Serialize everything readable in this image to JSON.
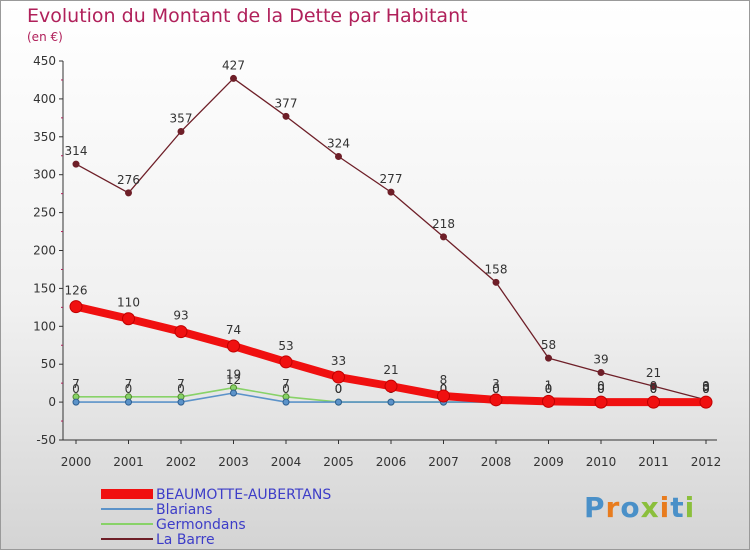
{
  "chart_data": {
    "type": "line",
    "title": "Evolution du Montant de la Dette par Habitant",
    "unit_label": "(en €)",
    "xlabel": "",
    "ylabel": "",
    "ylim": [
      -50,
      450
    ],
    "yticks": [
      -50,
      0,
      50,
      100,
      150,
      200,
      250,
      300,
      350,
      400,
      450
    ],
    "x": [
      "2000",
      "2001",
      "2002",
      "2003",
      "2004",
      "2005",
      "2006",
      "2007",
      "2008",
      "2009",
      "2010",
      "2011",
      "2012"
    ],
    "series": [
      {
        "name": "La Barre",
        "color": "#6e1f28",
        "values": [
          314,
          276,
          357,
          427,
          377,
          324,
          277,
          218,
          158,
          58,
          39,
          21,
          3
        ],
        "labels": [
          "314",
          "276",
          "357",
          "427",
          "377",
          "324",
          "277",
          "218",
          "158",
          "58",
          "39",
          "21",
          "3"
        ]
      },
      {
        "name": "Germondans",
        "color": "#88d268",
        "values": [
          7,
          7,
          7,
          19,
          7,
          0,
          0,
          0,
          0,
          0,
          0,
          0,
          0
        ],
        "labels": [
          "7",
          "7",
          "7",
          "19",
          "7",
          "0",
          "0",
          "0",
          "0",
          "0",
          "0",
          "0",
          "0"
        ]
      },
      {
        "name": "Blarians",
        "color": "#5c93c9",
        "values": [
          0,
          0,
          0,
          12,
          0,
          0,
          0,
          0,
          0,
          0,
          0,
          0,
          0
        ],
        "labels": [
          "0",
          "0",
          "0",
          "12",
          "0",
          "0",
          "0",
          "0",
          "0",
          "0",
          "0",
          "0",
          "0"
        ]
      },
      {
        "name": "BEAUMOTTE-AUBERTANS",
        "color": "#f01010",
        "values": [
          126,
          110,
          93,
          74,
          53,
          33,
          21,
          8,
          3,
          1,
          0,
          0,
          0
        ],
        "labels": [
          "126",
          "110",
          "93",
          "74",
          "53",
          "33",
          "21",
          "8",
          "3",
          "1",
          "0",
          "0",
          "0"
        ]
      }
    ],
    "legend_order": [
      "BEAUMOTTE-AUBERTANS",
      "Blarians",
      "Germondans",
      "La Barre"
    ],
    "legend_position": "bottom-left",
    "grid": false
  },
  "branding": {
    "letters": [
      "P",
      "r",
      "o",
      "x",
      "i",
      "t",
      "i"
    ],
    "colors": [
      "#4a90c8",
      "#e87c1e",
      "#4a90c8",
      "#8bbf3c",
      "#e87c1e",
      "#4a90c8",
      "#8bbf3c"
    ]
  }
}
